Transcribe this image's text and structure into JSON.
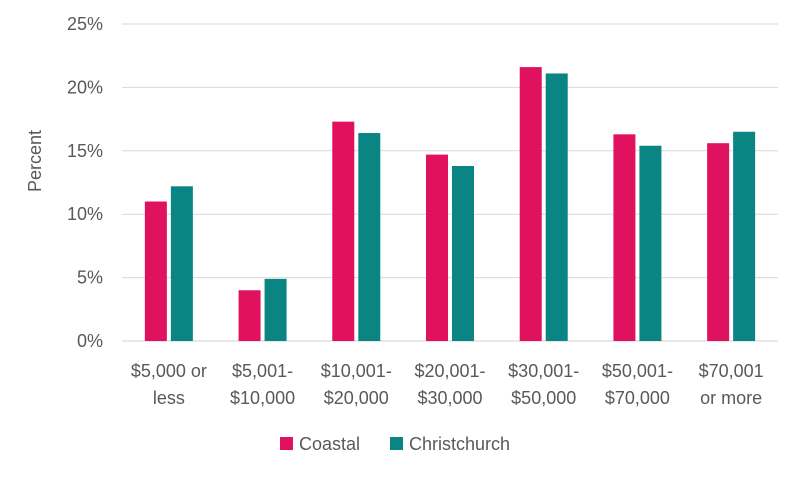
{
  "chart_data": {
    "type": "bar",
    "title": "",
    "xlabel": "",
    "ylabel": "Percent",
    "ylim": [
      0,
      25
    ],
    "y_tick_step": 5,
    "y_tick_suffix": "%",
    "grid": true,
    "legend_position": "bottom",
    "categories": [
      [
        "$5,000 or",
        "less"
      ],
      [
        "$5,001-",
        "$10,000"
      ],
      [
        "$10,001-",
        "$20,000"
      ],
      [
        "$20,001-",
        "$30,000"
      ],
      [
        "$30,001-",
        "$50,000"
      ],
      [
        "$50,001-",
        "$70,000"
      ],
      [
        "$70,001",
        "or more"
      ]
    ],
    "series": [
      {
        "name": "Coastal",
        "color": "#e0115f",
        "values": [
          11.0,
          4.0,
          17.3,
          14.7,
          21.6,
          16.3,
          15.6
        ]
      },
      {
        "name": "Christchurch",
        "color": "#0b8484",
        "values": [
          12.2,
          4.9,
          16.4,
          13.8,
          21.1,
          15.4,
          16.5
        ]
      }
    ]
  }
}
